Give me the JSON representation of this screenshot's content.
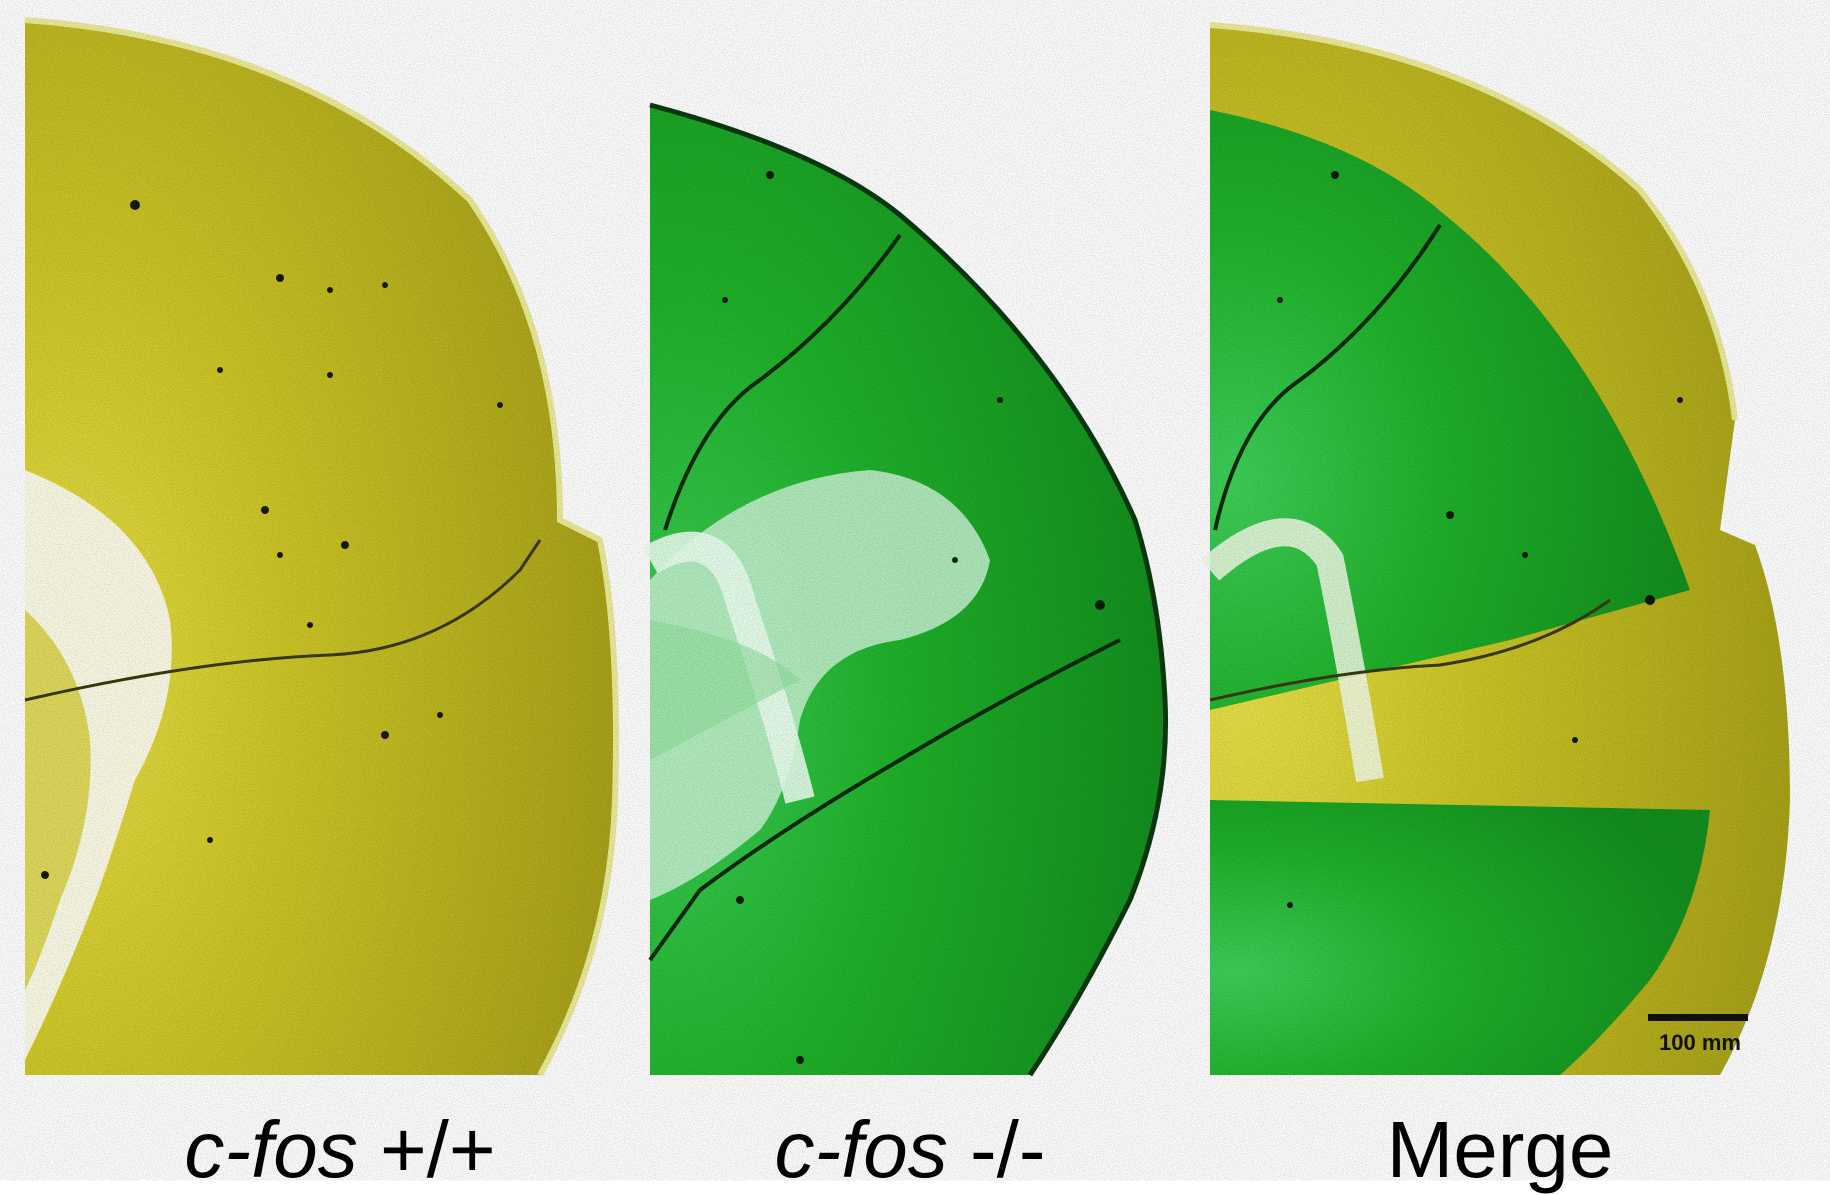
{
  "figure": {
    "panels": [
      {
        "id": "wildtype",
        "gene": "c-fos",
        "genotype": "+/+",
        "tint": "#c9c21a"
      },
      {
        "id": "knockout",
        "gene": "c-fos",
        "genotype": "-/-",
        "tint": "#1fa81f"
      },
      {
        "id": "merge",
        "label": "Merge"
      }
    ],
    "scale_bar": {
      "label": "100 mm"
    },
    "colors": {
      "yellow": "#c9c21a",
      "green": "#1fa81f",
      "background": "#ffffff"
    }
  }
}
